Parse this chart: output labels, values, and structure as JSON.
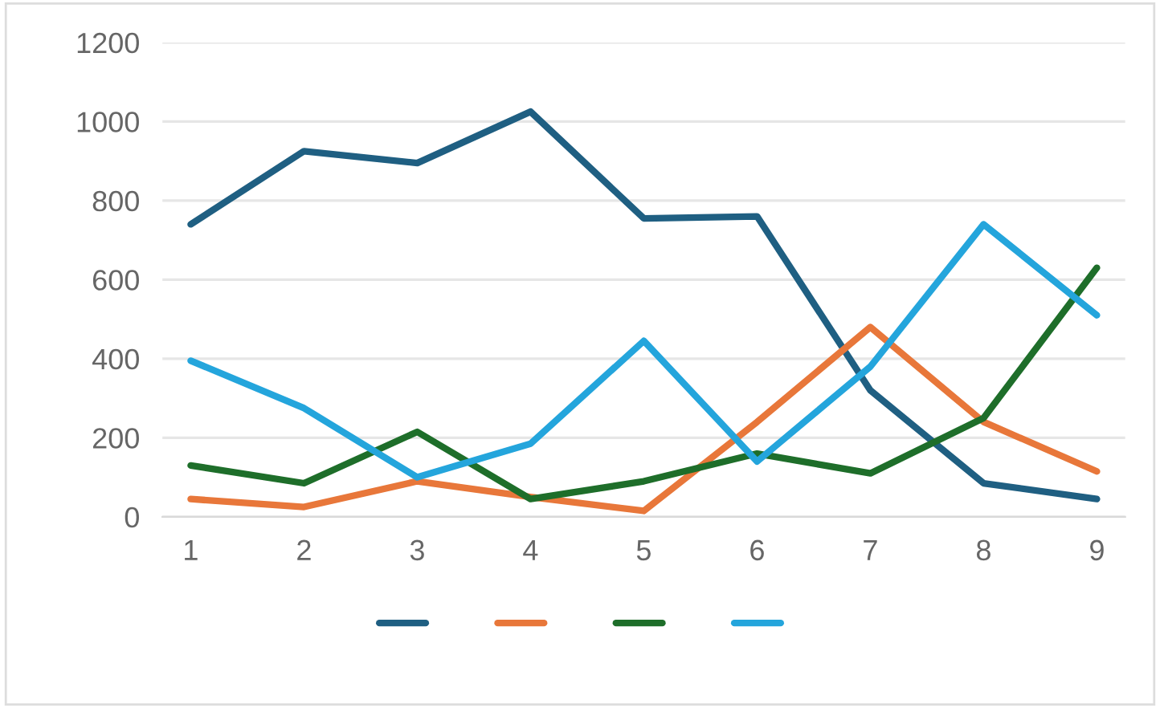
{
  "chart_data": {
    "type": "line",
    "categories": [
      "1",
      "2",
      "3",
      "4",
      "5",
      "6",
      "7",
      "8",
      "9"
    ],
    "series": [
      {
        "color": "#1f5f82",
        "values": [
          740,
          925,
          895,
          1025,
          755,
          760,
          320,
          85,
          45
        ]
      },
      {
        "color": "#e8773a",
        "values": [
          45,
          25,
          90,
          50,
          15,
          240,
          480,
          240,
          115
        ]
      },
      {
        "color": "#1e6e2a",
        "values": [
          130,
          85,
          215,
          45,
          90,
          160,
          110,
          250,
          630
        ]
      },
      {
        "color": "#24a5dc",
        "values": [
          395,
          275,
          100,
          185,
          445,
          140,
          380,
          740,
          510
        ]
      }
    ],
    "ylim": [
      0,
      1200
    ],
    "yticks": [
      0,
      200,
      400,
      600,
      800,
      1000,
      1200
    ],
    "grid": "y",
    "marker": "none",
    "line_style": "solid"
  }
}
